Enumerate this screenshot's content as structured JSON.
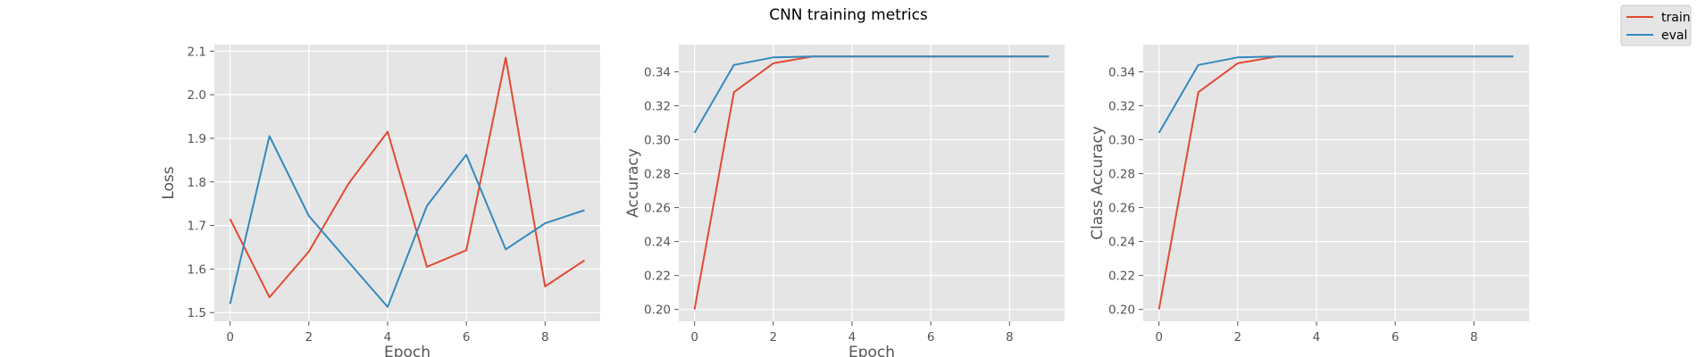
{
  "figure": {
    "title": "CNN training metrics",
    "background": "#ffffff",
    "plot_background": "#e5e5e5",
    "grid_color": "#ffffff",
    "text_color": "#555555"
  },
  "legend": {
    "placement": "top-right",
    "entries": [
      {
        "name": "train",
        "color": "#e24a33"
      },
      {
        "name": "eval",
        "color": "#348abd"
      }
    ]
  },
  "chart_data": [
    {
      "type": "line",
      "title": "",
      "xlabel": "Epoch",
      "ylabel": "Loss",
      "xlim": [
        -0.4,
        9.4
      ],
      "ylim": [
        1.48,
        2.115
      ],
      "xticks": [
        0,
        2,
        4,
        6,
        8
      ],
      "yticks": [
        1.5,
        1.6,
        1.7,
        1.8,
        1.9,
        2.0,
        2.1
      ],
      "ytick_labels": [
        "1.5",
        "1.6",
        "1.7",
        "1.8",
        "1.9",
        "2.0",
        "2.1"
      ],
      "grid": true,
      "x": [
        0,
        1,
        2,
        3,
        4,
        5,
        6,
        7,
        8,
        9
      ],
      "series": [
        {
          "name": "train",
          "color": "#e24a33",
          "values": [
            1.715,
            1.535,
            1.64,
            1.795,
            1.915,
            1.605,
            1.643,
            2.085,
            1.56,
            1.62
          ]
        },
        {
          "name": "eval",
          "color": "#348abd",
          "values": [
            1.52,
            1.905,
            1.722,
            1.617,
            1.513,
            1.745,
            1.862,
            1.645,
            1.705,
            1.735
          ]
        }
      ]
    },
    {
      "type": "line",
      "title": "",
      "xlabel": "Epoch",
      "ylabel": "Accuracy",
      "xlim": [
        -0.4,
        9.4
      ],
      "ylim": [
        0.193,
        0.356
      ],
      "xticks": [
        0,
        2,
        4,
        6,
        8
      ],
      "yticks": [
        0.2,
        0.22,
        0.24,
        0.26,
        0.28,
        0.3,
        0.32,
        0.34
      ],
      "ytick_labels": [
        "0.20",
        "0.22",
        "0.24",
        "0.26",
        "0.28",
        "0.30",
        "0.32",
        "0.34"
      ],
      "grid": true,
      "x": [
        0,
        1,
        2,
        3,
        4,
        5,
        6,
        7,
        8,
        9
      ],
      "series": [
        {
          "name": "train",
          "color": "#e24a33",
          "values": [
            0.2,
            0.328,
            0.345,
            0.349,
            0.349,
            0.349,
            0.349,
            0.349,
            0.349,
            0.349
          ]
        },
        {
          "name": "eval",
          "color": "#348abd",
          "values": [
            0.304,
            0.344,
            0.3485,
            0.349,
            0.349,
            0.349,
            0.349,
            0.349,
            0.349,
            0.349
          ]
        }
      ]
    },
    {
      "type": "line",
      "title": "",
      "xlabel": "",
      "ylabel": "Class Accuracy",
      "xlim": [
        -0.4,
        9.4
      ],
      "ylim": [
        0.193,
        0.356
      ],
      "xticks": [
        0,
        2,
        4,
        6,
        8
      ],
      "yticks": [
        0.2,
        0.22,
        0.24,
        0.26,
        0.28,
        0.3,
        0.32,
        0.34
      ],
      "ytick_labels": [
        "0.20",
        "0.22",
        "0.24",
        "0.26",
        "0.28",
        "0.30",
        "0.32",
        "0.34"
      ],
      "grid": true,
      "x": [
        0,
        1,
        2,
        3,
        4,
        5,
        6,
        7,
        8,
        9
      ],
      "series": [
        {
          "name": "train",
          "color": "#e24a33",
          "values": [
            0.2,
            0.328,
            0.345,
            0.349,
            0.349,
            0.349,
            0.349,
            0.349,
            0.349,
            0.349
          ]
        },
        {
          "name": "eval",
          "color": "#348abd",
          "values": [
            0.304,
            0.344,
            0.3485,
            0.349,
            0.349,
            0.349,
            0.349,
            0.349,
            0.349,
            0.349
          ]
        }
      ]
    }
  ]
}
